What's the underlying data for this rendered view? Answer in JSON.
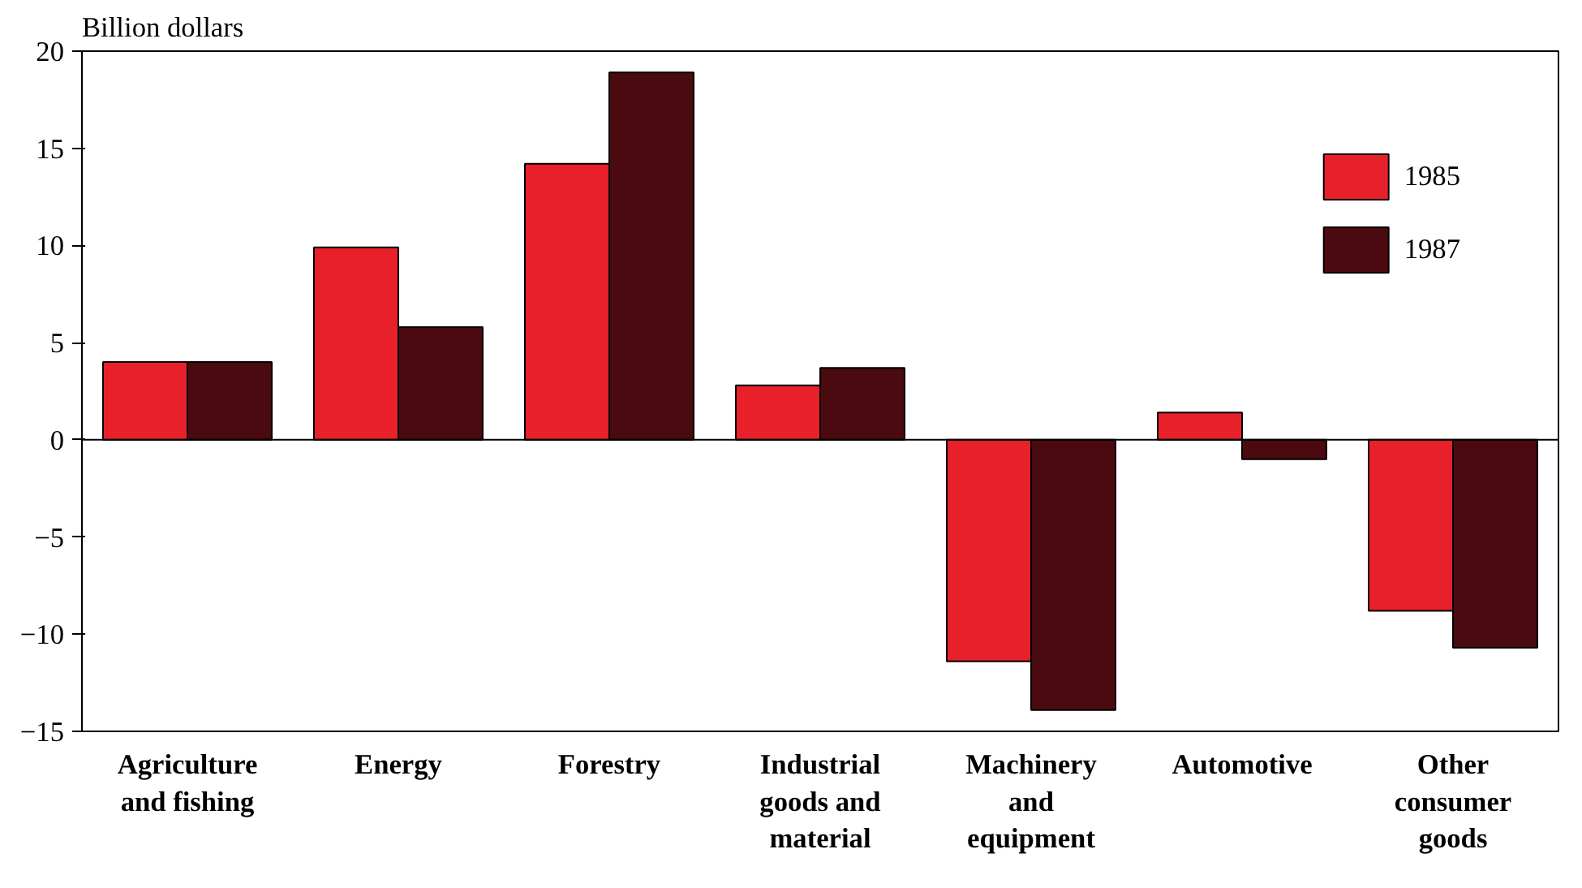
{
  "chart_data": {
    "type": "bar",
    "ylabel": "Billion dollars",
    "categories": [
      "Agriculture\nand fishing",
      "Energy",
      "Forestry",
      "Industrial\ngoods and\nmaterial",
      "Machinery\nand\nequipment",
      "Automotive",
      "Other\nconsumer\ngoods"
    ],
    "series": [
      {
        "name": "1985",
        "color": "#e8202a",
        "values": [
          4.0,
          9.9,
          14.2,
          2.8,
          -11.4,
          1.4,
          -8.8
        ]
      },
      {
        "name": "1987",
        "color": "#4a0a10",
        "values": [
          4.0,
          5.8,
          18.9,
          3.7,
          -13.9,
          -1.0,
          -10.7
        ]
      }
    ],
    "ylim": [
      -15,
      20
    ],
    "yticks": [
      -15,
      -10,
      -5,
      0,
      5,
      10,
      15,
      20
    ],
    "legend": "top right"
  }
}
